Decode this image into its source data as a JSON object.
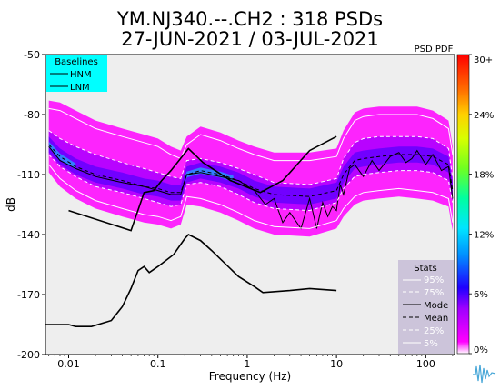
{
  "chart_data": {
    "type": "psd-pdf",
    "title": "YM.NJ340.--.CH2 : 318 PSDs",
    "subtitle": "27-JUN-2021 / 03-JUL-2021",
    "colorbar_title": "PSD PDF",
    "xlabel": "Frequency (Hz)",
    "ylabel": "dB",
    "x_scale": "log",
    "xlim": [
      0.0055,
      210
    ],
    "ylim": [
      -200,
      -50
    ],
    "x_ticks": [
      {
        "value": 0.01,
        "label": "0.01"
      },
      {
        "value": 0.1,
        "label": "0.1"
      },
      {
        "value": 1,
        "label": "1"
      },
      {
        "value": 10,
        "label": "10"
      },
      {
        "value": 100,
        "label": "100"
      }
    ],
    "y_ticks": [
      {
        "value": -50,
        "label": "-50"
      },
      {
        "value": -80,
        "label": "-80"
      },
      {
        "value": -110,
        "label": "-110"
      },
      {
        "value": -140,
        "label": "-140"
      },
      {
        "value": -170,
        "label": "-170"
      },
      {
        "value": -200,
        "label": "-200"
      }
    ],
    "colorbar_ticks": [
      "30+",
      "24%",
      "18%",
      "12%",
      "6%",
      "0%"
    ],
    "baselines_legend": {
      "title": "Baselines",
      "items": [
        "HNM",
        "LNM"
      ]
    },
    "stats_legend": {
      "title": "Stats",
      "items": [
        "95%",
        "75%",
        "Mode",
        "Mean",
        "25%",
        "5%"
      ]
    },
    "hnm": {
      "x": [
        0.01,
        0.05,
        0.07,
        0.09,
        0.11,
        0.14,
        0.22,
        0.32,
        0.65,
        1.4,
        2.5,
        5,
        10
      ],
      "y": [
        -128,
        -138,
        -119,
        -118,
        -113,
        -108,
        -97,
        -104,
        -113,
        -119,
        -113,
        -98,
        -91
      ]
    },
    "lnm": {
      "x": [
        0.0055,
        0.01,
        0.012,
        0.018,
        0.03,
        0.04,
        0.05,
        0.06,
        0.07,
        0.08,
        0.1,
        0.15,
        0.2,
        0.22,
        0.3,
        0.4,
        0.8,
        1.2,
        1.5,
        3,
        5,
        10
      ],
      "y": [
        -185,
        -185,
        -186,
        -186,
        -183,
        -176,
        -167,
        -158,
        -156,
        -159,
        -156,
        -150,
        -142,
        -140,
        -143,
        -148,
        -161,
        -166,
        -169,
        -168,
        -167,
        -168
      ]
    },
    "series": [
      {
        "name": "95%",
        "x": [
          0.006,
          0.008,
          0.012,
          0.02,
          0.04,
          0.07,
          0.1,
          0.14,
          0.18,
          0.21,
          0.3,
          0.5,
          0.8,
          1.2,
          2,
          5,
          10,
          12,
          16,
          20,
          30,
          50,
          80,
          120,
          180,
          200
        ],
        "y": [
          -77,
          -78,
          -82,
          -87,
          -91,
          -94,
          -96,
          -100,
          -102,
          -95,
          -90,
          -93,
          -97,
          -100,
          -103,
          -103,
          -101,
          -92,
          -83,
          -81,
          -80,
          -80,
          -80,
          -82,
          -87,
          -100
        ]
      },
      {
        "name": "75%",
        "x": [
          0.006,
          0.008,
          0.012,
          0.02,
          0.04,
          0.07,
          0.1,
          0.14,
          0.18,
          0.21,
          0.3,
          0.5,
          0.8,
          1.2,
          2,
          5,
          10,
          12,
          16,
          20,
          30,
          50,
          80,
          120,
          180,
          200
        ],
        "y": [
          -88,
          -92,
          -96,
          -100,
          -104,
          -107,
          -109,
          -111,
          -112,
          -103,
          -102,
          -104,
          -107,
          -110,
          -114,
          -115,
          -112,
          -102,
          -94,
          -92,
          -91,
          -91,
          -91,
          -92,
          -97,
          -112
        ]
      },
      {
        "name": "Mode",
        "x": [
          0.006,
          0.008,
          0.012,
          0.02,
          0.04,
          0.07,
          0.1,
          0.14,
          0.18,
          0.21,
          0.3,
          0.5,
          0.8,
          1.2,
          1.6,
          2,
          2.5,
          3,
          4,
          5,
          6,
          7,
          8,
          9,
          10,
          11,
          12,
          14,
          16,
          20,
          25,
          30,
          40,
          50,
          60,
          70,
          80,
          100,
          120,
          150,
          180,
          200
        ],
        "y": [
          -96,
          -103,
          -107,
          -111,
          -114,
          -116,
          -118,
          -120,
          -120,
          -110,
          -109,
          -111,
          -113,
          -118,
          -125,
          -122,
          -134,
          -129,
          -137,
          -122,
          -137,
          -124,
          -131,
          -126,
          -128,
          -115,
          -120,
          -107,
          -105,
          -111,
          -103,
          -108,
          -101,
          -99,
          -104,
          -102,
          -98,
          -105,
          -100,
          -108,
          -106,
          -122
        ]
      },
      {
        "name": "Mean",
        "x": [
          0.006,
          0.008,
          0.012,
          0.02,
          0.04,
          0.07,
          0.1,
          0.14,
          0.18,
          0.21,
          0.3,
          0.5,
          0.8,
          1.2,
          2,
          5,
          10,
          12,
          16,
          20,
          30,
          50,
          80,
          120,
          180,
          200
        ],
        "y": [
          -95,
          -101,
          -106,
          -110,
          -113,
          -116,
          -117,
          -119,
          -119,
          -110,
          -108,
          -110,
          -113,
          -117,
          -120,
          -121,
          -118,
          -110,
          -103,
          -102,
          -101,
          -100,
          -100,
          -101,
          -105,
          -118
        ]
      },
      {
        "name": "25%",
        "x": [
          0.006,
          0.008,
          0.012,
          0.02,
          0.04,
          0.07,
          0.1,
          0.14,
          0.18,
          0.21,
          0.3,
          0.5,
          0.8,
          1.2,
          2,
          5,
          10,
          12,
          16,
          20,
          30,
          50,
          80,
          120,
          180,
          200
        ],
        "y": [
          -100,
          -106,
          -111,
          -116,
          -119,
          -122,
          -124,
          -126,
          -125,
          -115,
          -114,
          -116,
          -120,
          -124,
          -127,
          -128,
          -124,
          -117,
          -111,
          -110,
          -109,
          -108,
          -108,
          -109,
          -113,
          -124
        ]
      },
      {
        "name": "5%",
        "x": [
          0.006,
          0.008,
          0.012,
          0.02,
          0.04,
          0.07,
          0.1,
          0.14,
          0.18,
          0.21,
          0.3,
          0.5,
          0.8,
          1.2,
          2,
          5,
          10,
          12,
          16,
          20,
          30,
          50,
          80,
          120,
          180,
          200
        ],
        "y": [
          -105,
          -112,
          -118,
          -123,
          -127,
          -130,
          -131,
          -133,
          -131,
          -121,
          -122,
          -125,
          -129,
          -133,
          -136,
          -137,
          -133,
          -127,
          -121,
          -119,
          -118,
          -117,
          -118,
          -119,
          -122,
          -134
        ]
      }
    ],
    "colors": {
      "plot_bg": "#eeeeee",
      "baselines_bg": "#00ffff",
      "stats_bg": "#ccc4da",
      "pdf_low": "#ff00ff",
      "pdf_mid": "#5a00ff",
      "pdf_high": "#00e5ff"
    }
  }
}
